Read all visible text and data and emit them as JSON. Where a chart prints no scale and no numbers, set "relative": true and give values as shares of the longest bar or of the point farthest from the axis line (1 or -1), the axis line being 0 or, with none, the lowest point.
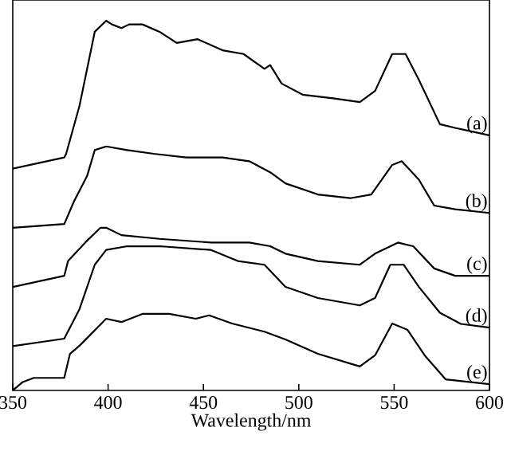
{
  "chart_data": {
    "type": "line",
    "relative": true,
    "xlabel": "Wavelength/nm",
    "xlim": [
      350,
      600
    ],
    "xticks": [
      350,
      400,
      450,
      500,
      550,
      600
    ],
    "series": [
      {
        "name": "(a)",
        "color": "#000000",
        "x": [
          350,
          377,
          378,
          385,
          393,
          399,
          402,
          407,
          411,
          418,
          427,
          436,
          447,
          460,
          471,
          482,
          485,
          491,
          502,
          518,
          532,
          540,
          549,
          556,
          563,
          574,
          582,
          591,
          600
        ],
        "values": [
          0.6,
          0.63,
          0.64,
          0.77,
          0.97,
          1.0,
          0.99,
          0.98,
          0.99,
          0.99,
          0.97,
          0.94,
          0.95,
          0.92,
          0.91,
          0.87,
          0.88,
          0.83,
          0.8,
          0.79,
          0.78,
          0.81,
          0.91,
          0.91,
          0.84,
          0.72,
          0.71,
          0.7,
          0.69
        ]
      },
      {
        "name": "(b)",
        "color": "#000000",
        "x": [
          350,
          377,
          382,
          389,
          393,
          399,
          410,
          424,
          441,
          460,
          474,
          485,
          493,
          510,
          527,
          538,
          549,
          554,
          563,
          571,
          582,
          600
        ],
        "values": [
          0.44,
          0.45,
          0.51,
          0.58,
          0.65,
          0.66,
          0.65,
          0.64,
          0.63,
          0.63,
          0.62,
          0.59,
          0.56,
          0.53,
          0.52,
          0.53,
          0.61,
          0.62,
          0.57,
          0.5,
          0.49,
          0.48
        ]
      },
      {
        "name": "(c)",
        "color": "#000000",
        "x": [
          350,
          377,
          379,
          388,
          396,
          399,
          407,
          427,
          454,
          474,
          485,
          493,
          510,
          532,
          540,
          552,
          560,
          571,
          582,
          600
        ],
        "values": [
          0.28,
          0.31,
          0.35,
          0.4,
          0.44,
          0.44,
          0.42,
          0.41,
          0.4,
          0.4,
          0.39,
          0.37,
          0.35,
          0.34,
          0.37,
          0.4,
          0.39,
          0.33,
          0.31,
          0.31
        ]
      },
      {
        "name": "(d)",
        "color": "#000000",
        "x": [
          350,
          377,
          385,
          393,
          399,
          410,
          427,
          454,
          468,
          482,
          493,
          510,
          532,
          540,
          548,
          555,
          563,
          574,
          585,
          600
        ],
        "values": [
          0.12,
          0.14,
          0.22,
          0.34,
          0.38,
          0.39,
          0.39,
          0.38,
          0.35,
          0.34,
          0.28,
          0.25,
          0.23,
          0.25,
          0.34,
          0.34,
          0.28,
          0.21,
          0.18,
          0.17
        ]
      },
      {
        "name": "(e)",
        "color": "#000000",
        "x": [
          350,
          355,
          361,
          377,
          380,
          385,
          399,
          407,
          418,
          432,
          446,
          453,
          465,
          482,
          493,
          510,
          532,
          540,
          549,
          557,
          566,
          577,
          600
        ],
        "values": [
          0.0,
          0.022,
          0.034,
          0.034,
          0.099,
          0.121,
          0.194,
          0.185,
          0.207,
          0.207,
          0.194,
          0.203,
          0.181,
          0.159,
          0.138,
          0.099,
          0.065,
          0.095,
          0.181,
          0.164,
          0.095,
          0.03,
          0.017
        ]
      }
    ]
  }
}
